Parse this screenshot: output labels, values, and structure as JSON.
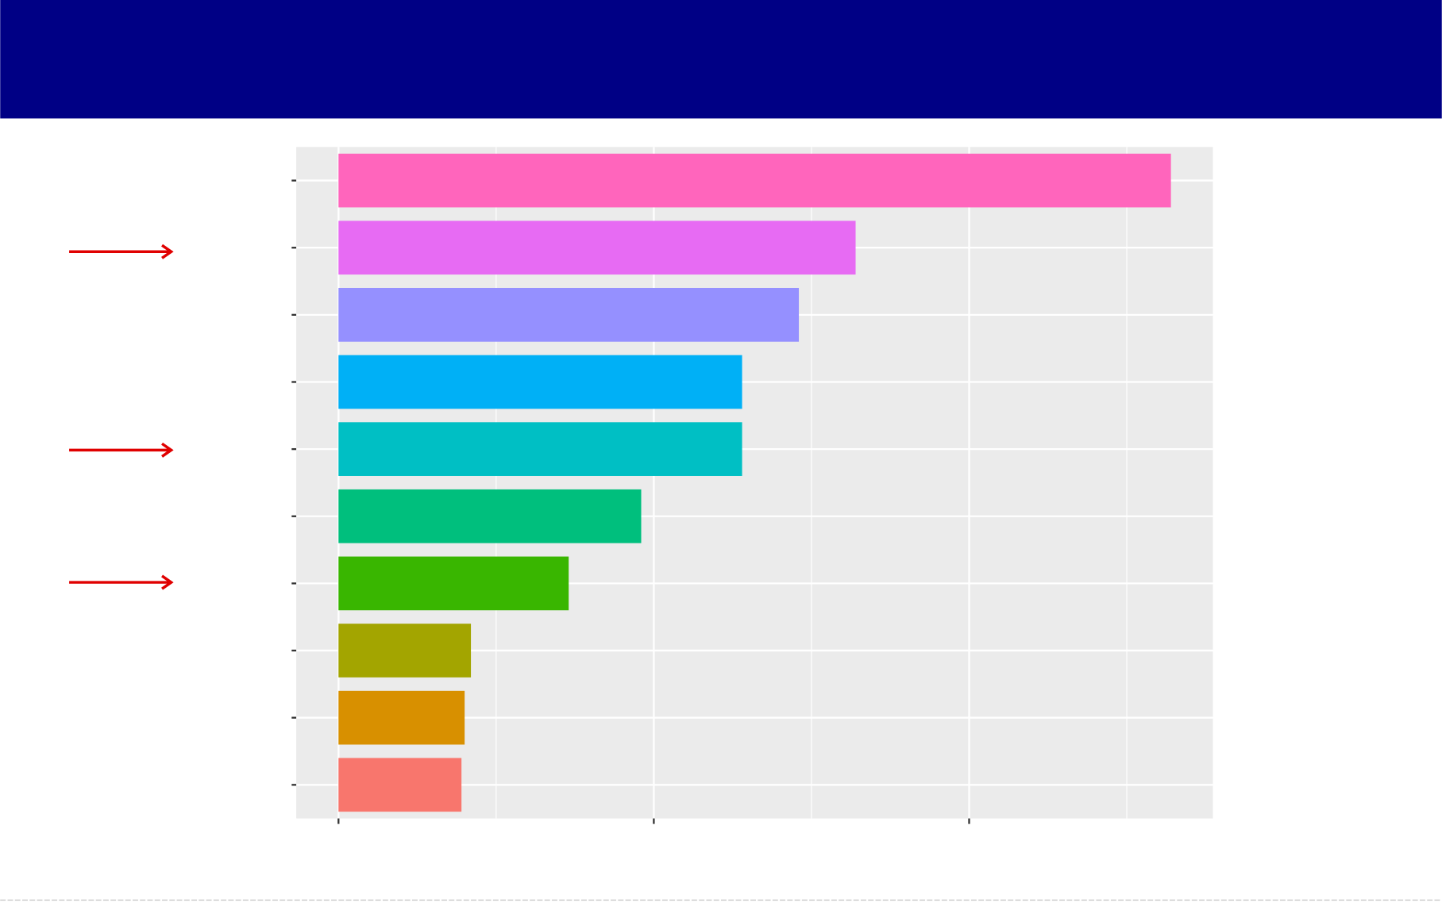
{
  "chart_data": {
    "type": "bar",
    "orientation": "horizontal",
    "categories": [
      null,
      null,
      null,
      null,
      null,
      null,
      null,
      null,
      null,
      null
    ],
    "values": [
      2.64,
      1.64,
      1.46,
      1.28,
      1.28,
      0.96,
      0.73,
      0.42,
      0.4,
      0.39
    ],
    "colors": [
      "#ff65bc",
      "#e76bf3",
      "#9590ff",
      "#00b0f6",
      "#00bfc4",
      "#00bf7d",
      "#39b600",
      "#a3a500",
      "#d89000",
      "#f8766d"
    ],
    "xlim": [
      -0.134,
      2.773
    ],
    "xticks": [
      0,
      1,
      2
    ],
    "xminorticks": [
      0.5,
      1.5,
      2.5
    ],
    "grid": true
  }
}
